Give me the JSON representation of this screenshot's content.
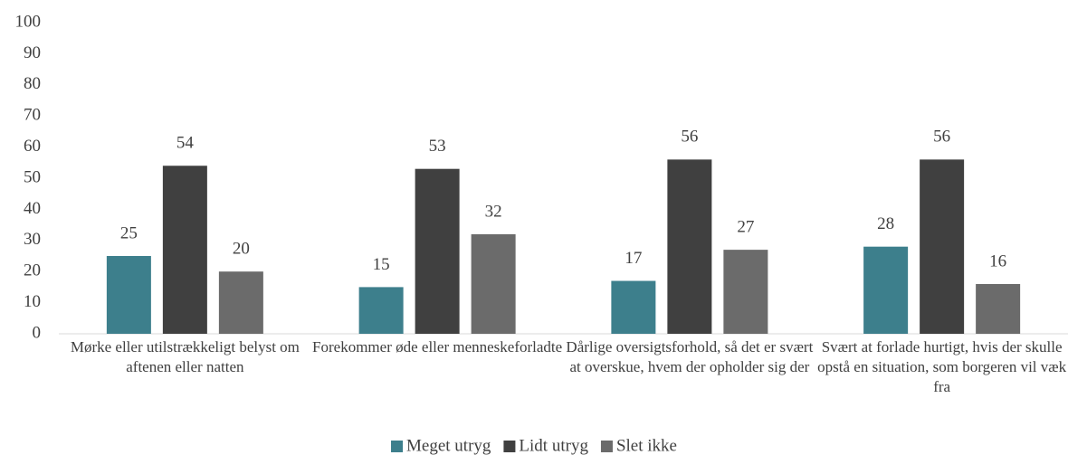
{
  "chart_data": {
    "type": "bar",
    "categories": [
      "Mørke eller utilstrækkeligt belyst om aftenen eller natten",
      "Forekommer øde eller menneskeforladte",
      "Dårlige oversigtsforhold, så det er svært at overskue, hvem der opholder sig der",
      "Svært at forlade hurtigt, hvis der skulle opstå en situation, som borgeren vil væk fra"
    ],
    "series": [
      {
        "name": "Meget utryg",
        "color": "#3d7f8c",
        "values": [
          25,
          15,
          17,
          28
        ]
      },
      {
        "name": "Lidt utryg",
        "color": "#404040",
        "values": [
          54,
          53,
          56,
          56
        ]
      },
      {
        "name": "Slet ikke",
        "color": "#6b6b6b",
        "values": [
          20,
          32,
          27,
          16
        ]
      }
    ],
    "ylim": [
      0,
      100
    ],
    "yticks": [
      0,
      10,
      20,
      30,
      40,
      50,
      60,
      70,
      80,
      90,
      100
    ],
    "grid": false,
    "legend": "bottom"
  }
}
